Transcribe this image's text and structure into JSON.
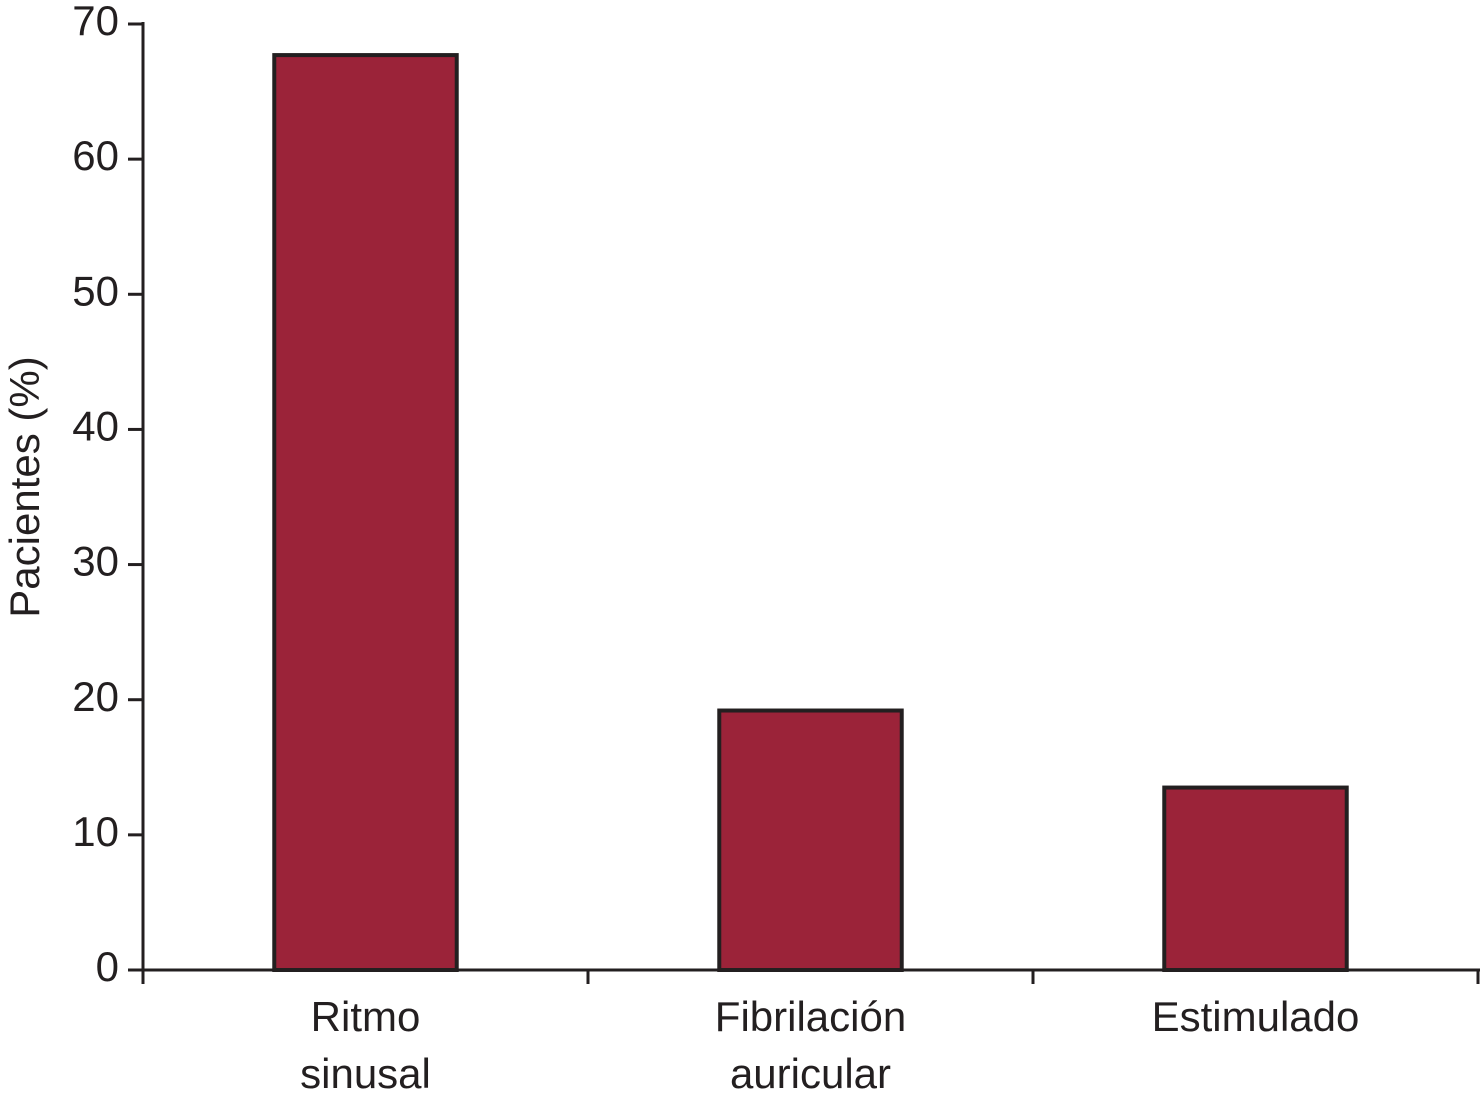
{
  "chart_data": {
    "type": "bar",
    "y_label": "Pacientes (%)",
    "categories": [
      [
        "Ritmo",
        "sinusal"
      ],
      [
        "Fibrilación",
        "auricular"
      ],
      [
        "Estimulado"
      ]
    ],
    "values": [
      67.7,
      19.2,
      13.5
    ],
    "color": "#9b2339",
    "ylim": [
      0,
      70
    ],
    "yticks": [
      0,
      10,
      20,
      30,
      40,
      50,
      60,
      70
    ],
    "grid": false
  }
}
